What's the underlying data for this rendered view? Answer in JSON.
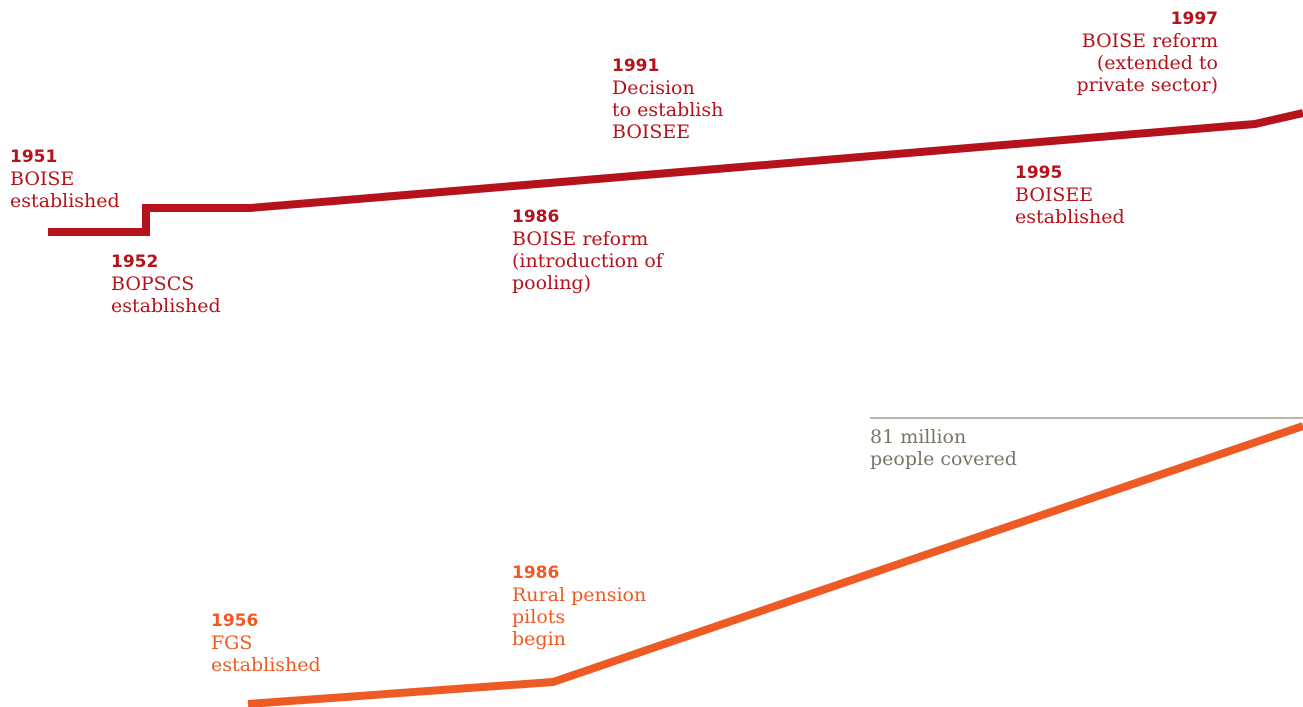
{
  "colors": {
    "red": "#b5121b",
    "orange": "#ee5a24",
    "note": "#7d7468",
    "note_line": "#a39a8c"
  },
  "events": {
    "e1951": {
      "year": "1951",
      "lines": [
        "BOISE",
        "established"
      ]
    },
    "e1952": {
      "year": "1952",
      "lines": [
        "BOPSCS",
        "established"
      ]
    },
    "e1986a": {
      "year": "1986",
      "lines": [
        "BOISE reform",
        "(introduction of",
        "pooling)"
      ]
    },
    "e1991": {
      "year": "1991",
      "lines": [
        "Decision",
        "to establish",
        "BOISEE"
      ]
    },
    "e1995": {
      "year": "1995",
      "lines": [
        "BOISEE",
        "established"
      ]
    },
    "e1997": {
      "year": "1997",
      "lines": [
        "BOISE reform",
        "(extended to",
        "private sector)"
      ]
    },
    "e1956": {
      "year": "1956",
      "lines": [
        "FGS",
        "established"
      ]
    },
    "e1986b": {
      "year": "1986",
      "lines": [
        "Rural pension",
        "pilots",
        "begin"
      ]
    }
  },
  "coverage_note": {
    "lines": [
      "81 million",
      "people covered"
    ]
  }
}
